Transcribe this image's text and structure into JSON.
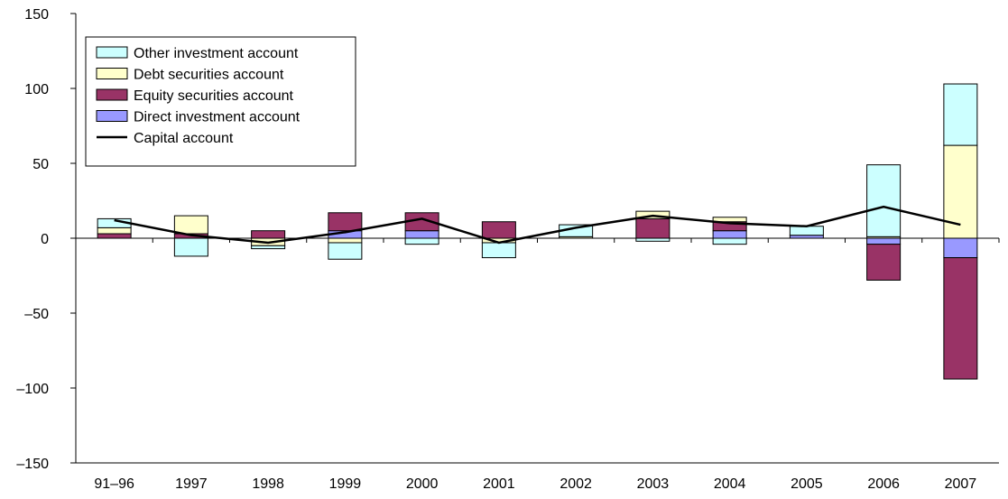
{
  "chart_data": {
    "type": "bar",
    "stacked": true,
    "categories": [
      "91–96",
      "1997",
      "1998",
      "1999",
      "2000",
      "2001",
      "2002",
      "2003",
      "2004",
      "2005",
      "2006",
      "2007"
    ],
    "ylim": [
      -150,
      150
    ],
    "yticks": [
      150,
      100,
      50,
      0,
      -50,
      -100,
      -150
    ],
    "ytick_labels": [
      "150",
      "100",
      "50",
      "0",
      "–50",
      "–100",
      "–150"
    ],
    "grid": false,
    "legend_position": "top-left",
    "series": [
      {
        "name": "Direct investment account",
        "kind": "bar",
        "color": "#9999ff",
        "values": [
          0,
          0,
          0,
          5,
          5,
          0,
          0,
          0,
          5,
          2,
          -4,
          -13
        ]
      },
      {
        "name": "Equity securities account",
        "kind": "bar",
        "color": "#993366",
        "values": [
          3,
          3,
          5,
          12,
          12,
          11,
          0,
          13,
          6,
          0,
          -24,
          -81
        ]
      },
      {
        "name": "Debt securities account",
        "kind": "bar",
        "color": "#ffffcc",
        "values": [
          4,
          12,
          -5,
          -3,
          0,
          -3,
          1,
          5,
          3,
          0,
          1,
          62
        ]
      },
      {
        "name": "Other investment account",
        "kind": "bar",
        "color": "#ccffff",
        "values": [
          6,
          -12,
          -2,
          -11,
          -4,
          -10,
          8,
          -2,
          -4,
          6,
          48,
          41
        ]
      },
      {
        "name": "Capital account",
        "kind": "line",
        "color": "#000000",
        "values": [
          12,
          2,
          -3,
          4,
          13,
          -3,
          7,
          15,
          10,
          8,
          21,
          9
        ]
      }
    ],
    "legend_order": [
      "Other investment account",
      "Debt securities account",
      "Equity securities account",
      "Direct investment account",
      "Capital account"
    ]
  }
}
